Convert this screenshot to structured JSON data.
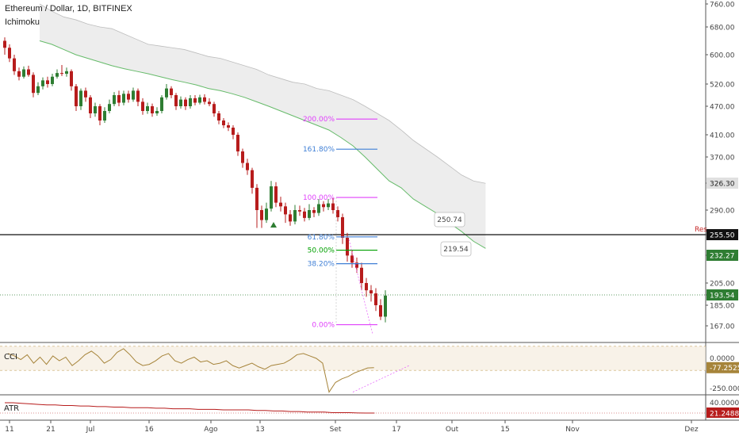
{
  "header": {
    "title": "Ethereum / Dollar, 1D, BITFINEX",
    "indicator": "Ichimoku"
  },
  "colors": {
    "bull": "#2e7d32",
    "bear": "#b71c1c",
    "cloud_line": "#66bb6a",
    "cloud_fill": "#e6e6e6",
    "fib_pink": "#e040fb",
    "fib_blue": "#3f7fd6",
    "fib_green": "#00a000",
    "cci_line": "#a6843a",
    "atr_line": "#b71c1c"
  },
  "chart_data": [
    {
      "type": "line",
      "title": "Ethereum / Dollar, 1D, BITFINEX",
      "note": "daily price with Ichimoku cloud and Fibonacci levels",
      "price_axis": [
        760,
        680,
        600,
        520,
        470,
        410,
        370,
        326.3,
        290,
        255.5,
        232.27,
        205,
        193.54,
        185,
        167
      ],
      "price_badges": [
        {
          "label": "326.30",
          "value": 326.3,
          "color": "#e0e0e0",
          "text_color": "#222"
        },
        {
          "label": "255.50",
          "value": 255.5,
          "color": "#111111",
          "text_color": "#fff"
        },
        {
          "label": "232.27",
          "value": 232.27,
          "color": "#2e7d32",
          "text_color": "#fff"
        },
        {
          "label": "193.54",
          "value": 193.54,
          "color": "#2e7d32",
          "text_color": "#fff"
        }
      ],
      "resistance": {
        "label": "Res",
        "value": 255.5
      },
      "current_price": 193.54,
      "fib_levels": [
        {
          "label": "200.00%",
          "value": 443,
          "color": "#e040fb"
        },
        {
          "label": "161.80%",
          "value": 384,
          "color": "#3f7fd6"
        },
        {
          "label": "100.00%",
          "value": 307,
          "color": "#e040fb"
        },
        {
          "label": "61.80%",
          "value": 253,
          "color": "#3f7fd6"
        },
        {
          "label": "50.00%",
          "value": 238,
          "color": "#00a000"
        },
        {
          "label": "38.20%",
          "value": 224,
          "color": "#3f7fd6"
        },
        {
          "label": "0.00%",
          "value": 168,
          "color": "#e040fb"
        }
      ],
      "callouts": [
        "250.74",
        "219.54"
      ],
      "x_tick_labels": [
        "11",
        "21",
        "Jul",
        "16",
        "Ago",
        "13",
        "Set",
        "17",
        "Out",
        "15",
        "Nov",
        "Dez"
      ],
      "candles": [
        [
          640,
          620,
          650,
          600
        ],
        [
          620,
          590,
          630,
          580
        ],
        [
          590,
          555,
          600,
          545
        ],
        [
          555,
          540,
          565,
          530
        ],
        [
          540,
          560,
          568,
          535
        ],
        [
          560,
          545,
          570,
          540
        ],
        [
          545,
          500,
          552,
          490
        ],
        [
          500,
          515,
          525,
          495
        ],
        [
          515,
          530,
          538,
          508
        ],
        [
          530,
          520,
          540,
          512
        ],
        [
          520,
          540,
          548,
          515
        ],
        [
          540,
          550,
          560,
          535
        ],
        [
          550,
          548,
          572,
          542
        ],
        [
          548,
          555,
          565,
          540
        ],
        [
          555,
          515,
          560,
          505
        ],
        [
          515,
          470,
          520,
          460
        ],
        [
          470,
          505,
          510,
          462
        ],
        [
          505,
          490,
          512,
          480
        ],
        [
          490,
          455,
          495,
          445
        ],
        [
          455,
          470,
          478,
          448
        ],
        [
          470,
          440,
          475,
          430
        ],
        [
          440,
          460,
          468,
          435
        ],
        [
          460,
          475,
          485,
          455
        ],
        [
          475,
          495,
          502,
          470
        ],
        [
          495,
          478,
          505,
          470
        ],
        [
          478,
          498,
          505,
          472
        ],
        [
          498,
          485,
          505,
          478
        ],
        [
          485,
          505,
          512,
          480
        ],
        [
          505,
          480,
          510,
          470
        ],
        [
          480,
          460,
          488,
          452
        ],
        [
          460,
          470,
          478,
          454
        ],
        [
          470,
          455,
          476,
          448
        ],
        [
          455,
          460,
          468,
          450
        ],
        [
          460,
          490,
          495,
          455
        ],
        [
          490,
          510,
          520,
          485
        ],
        [
          510,
          495,
          515,
          488
        ],
        [
          495,
          470,
          500,
          462
        ],
        [
          470,
          485,
          492,
          465
        ],
        [
          485,
          470,
          490,
          462
        ],
        [
          470,
          488,
          495,
          465
        ],
        [
          488,
          478,
          495,
          472
        ],
        [
          478,
          490,
          496,
          474
        ],
        [
          490,
          480,
          497,
          474
        ],
        [
          480,
          475,
          488,
          470
        ],
        [
          475,
          455,
          480,
          448
        ],
        [
          455,
          440,
          460,
          432
        ],
        [
          440,
          430,
          445,
          424
        ],
        [
          430,
          425,
          436,
          418
        ],
        [
          425,
          410,
          430,
          402
        ],
        [
          410,
          380,
          415,
          372
        ],
        [
          380,
          360,
          385,
          352
        ],
        [
          360,
          348,
          367,
          340
        ],
        [
          348,
          320,
          352,
          312
        ],
        [
          320,
          290,
          325,
          265
        ],
        [
          290,
          276,
          296,
          265
        ],
        [
          276,
          292,
          300,
          272
        ],
        [
          292,
          322,
          330,
          288
        ],
        [
          322,
          300,
          328,
          294
        ],
        [
          300,
          295,
          308,
          288
        ],
        [
          295,
          284,
          300,
          272
        ],
        [
          284,
          274,
          290,
          268
        ],
        [
          274,
          290,
          297,
          270
        ],
        [
          290,
          288,
          296,
          282
        ],
        [
          288,
          279,
          293,
          274
        ],
        [
          279,
          290,
          298,
          276
        ],
        [
          290,
          286,
          294,
          280
        ],
        [
          286,
          298,
          305,
          282
        ],
        [
          298,
          294,
          302,
          288
        ],
        [
          294,
          299,
          305,
          290
        ],
        [
          299,
          290,
          306,
          285
        ],
        [
          290,
          280,
          295,
          274
        ],
        [
          280,
          252,
          285,
          245
        ],
        [
          252,
          232,
          258,
          226
        ],
        [
          232,
          225,
          238,
          220
        ],
        [
          225,
          220,
          230,
          215
        ],
        [
          220,
          205,
          225,
          198
        ],
        [
          205,
          198,
          210,
          192
        ],
        [
          198,
          195,
          203,
          188
        ],
        [
          195,
          185,
          200,
          180
        ],
        [
          185,
          175,
          190,
          172
        ],
        [
          175,
          193,
          198,
          170
        ]
      ],
      "cloud_upper": [
        760,
        735,
        715,
        705,
        690,
        680,
        675,
        660,
        645,
        630,
        625,
        620,
        615,
        605,
        595,
        590,
        580,
        570,
        560,
        545,
        535,
        525,
        520,
        510,
        505,
        495,
        485,
        470,
        455,
        440,
        420,
        400,
        385,
        370,
        355,
        340,
        330,
        326
      ],
      "cloud_lower": [
        640,
        630,
        615,
        600,
        590,
        580,
        570,
        562,
        555,
        548,
        540,
        532,
        525,
        518,
        510,
        505,
        498,
        490,
        480,
        470,
        460,
        450,
        440,
        430,
        420,
        405,
        390,
        370,
        350,
        330,
        320,
        305,
        295,
        285,
        272,
        260,
        248,
        240
      ]
    },
    {
      "type": "line",
      "title": "CCI",
      "y_axis": [
        0,
        -77.2525,
        -250
      ],
      "y_tick_labels": [
        "0.0000",
        "-77.2525",
        "-250.0000"
      ],
      "current": -77.2525,
      "values": [
        40,
        20,
        -10,
        30,
        -40,
        10,
        -50,
        20,
        -20,
        10,
        -60,
        -20,
        30,
        60,
        20,
        -40,
        -10,
        50,
        80,
        30,
        -30,
        -60,
        -50,
        -20,
        20,
        40,
        -20,
        -40,
        -10,
        10,
        -30,
        -20,
        -50,
        -40,
        -20,
        -60,
        -80,
        -60,
        -40,
        -70,
        -90,
        -60,
        -50,
        -40,
        -10,
        30,
        40,
        20,
        0,
        -40,
        -280,
        -200,
        -170,
        -150,
        -120,
        -100,
        -80,
        -77
      ]
    },
    {
      "type": "line",
      "title": "ATR",
      "y_axis": [
        40,
        21.2488
      ],
      "y_tick_labels": [
        "40.0000",
        "21.2488"
      ],
      "current": 21.2488,
      "values": [
        40,
        40,
        39,
        38,
        37,
        36,
        36,
        35,
        35,
        34,
        34,
        33,
        33,
        32,
        32,
        31,
        31,
        31,
        30,
        30,
        29,
        29,
        29,
        28,
        28,
        28,
        27,
        27,
        27,
        27,
        26,
        26,
        25,
        25,
        24,
        24,
        23,
        23,
        23,
        22,
        22,
        22,
        21.5,
        21.3,
        21.2488
      ]
    }
  ]
}
